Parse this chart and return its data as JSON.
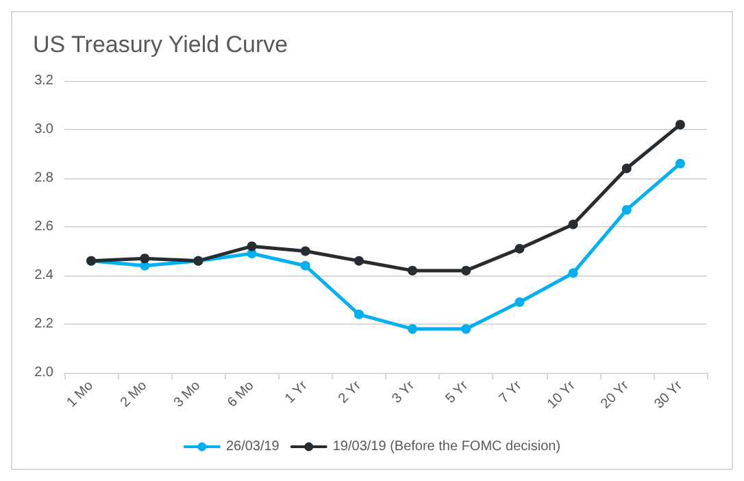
{
  "chart_data": {
    "type": "line",
    "title": "US Treasury Yield Curve",
    "categories": [
      "1 Mo",
      "2 Mo",
      "3 Mo",
      "6 Mo",
      "1 Yr",
      "2 Yr",
      "3 Yr",
      "5 Yr",
      "7 Yr",
      "10 Yr",
      "20 Yr",
      "30 Yr"
    ],
    "series": [
      {
        "name": "26/03/19",
        "color": "#00b0f0",
        "values": [
          2.46,
          2.44,
          2.46,
          2.49,
          2.44,
          2.24,
          2.18,
          2.18,
          2.29,
          2.41,
          2.67,
          2.86
        ]
      },
      {
        "name": "19/03/19 (Before the FOMC decision)",
        "color": "#262c30",
        "values": [
          2.46,
          2.47,
          2.46,
          2.52,
          2.5,
          2.46,
          2.42,
          2.42,
          2.51,
          2.61,
          2.84,
          3.02
        ]
      }
    ],
    "ylim": [
      2.0,
      3.2
    ],
    "yticks": [
      {
        "value": 2.0,
        "label": "2.0"
      },
      {
        "value": 2.2,
        "label": "2.2"
      },
      {
        "value": 2.4,
        "label": "2.4"
      },
      {
        "value": 2.6,
        "label": "2.6"
      },
      {
        "value": 2.8,
        "label": "2.8"
      },
      {
        "value": 3.0,
        "label": "3.0"
      },
      {
        "value": 3.2,
        "label": "3.2"
      }
    ],
    "grid": "y",
    "legend": "bottom",
    "marker": "circle",
    "line_style": "solid"
  }
}
